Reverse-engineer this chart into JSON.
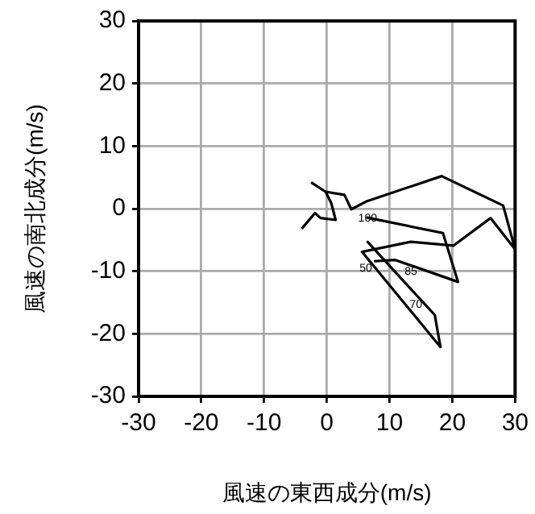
{
  "chart_data": {
    "type": "line",
    "xlabel": "風速の東西成分(m/s)",
    "ylabel": "風速の南北成分(m/s)",
    "series": [
      {
        "color": "#000000",
        "x": [
          -4.0,
          -1.9,
          -1.0,
          1.4,
          0.7,
          -0.2,
          -2.5
        ],
        "values": [
          -3.2,
          -0.7,
          -1.5,
          -1.8,
          0.9,
          2.7,
          4.2
        ]
      },
      {
        "color": "#000000",
        "x": [
          -0.2,
          2.8,
          3.9,
          6.4,
          18.3,
          28.1,
          30,
          26.1,
          20.2,
          13.4,
          5.6,
          18.1,
          17.2,
          6.4
        ],
        "values": [
          2.7,
          2.2,
          -0.1,
          1.2,
          5.2,
          0.5,
          -6.5,
          -1.5,
          -5.9,
          -5.3,
          -6.9,
          -22.1,
          -17.0,
          -5.2
        ]
      },
      {
        "color": "#000000",
        "x": [
          6.3,
          18.5,
          20.9,
          10.9,
          7.5
        ],
        "values": [
          -1.4,
          -3.9,
          -11.7,
          -8.2,
          -8.4
        ]
      }
    ],
    "xlim": [
      -30,
      30
    ],
    "ylim": [
      -30,
      30
    ],
    "xticks": [
      -30,
      -20,
      -10,
      0,
      10,
      20,
      30
    ],
    "yticks": [
      -30,
      -20,
      -10,
      0,
      10,
      20,
      30
    ],
    "grid": true,
    "legend": false,
    "marker": "none",
    "line_style": "solid",
    "annotations": [
      {
        "text": "100",
        "x": 6.5,
        "y": -1.6
      },
      {
        "text": "50",
        "x": 6.2,
        "y": -9.6
      },
      {
        "text": "85",
        "x": 13.4,
        "y": -10.1
      },
      {
        "text": "70",
        "x": 14.2,
        "y": -15.4
      }
    ]
  }
}
